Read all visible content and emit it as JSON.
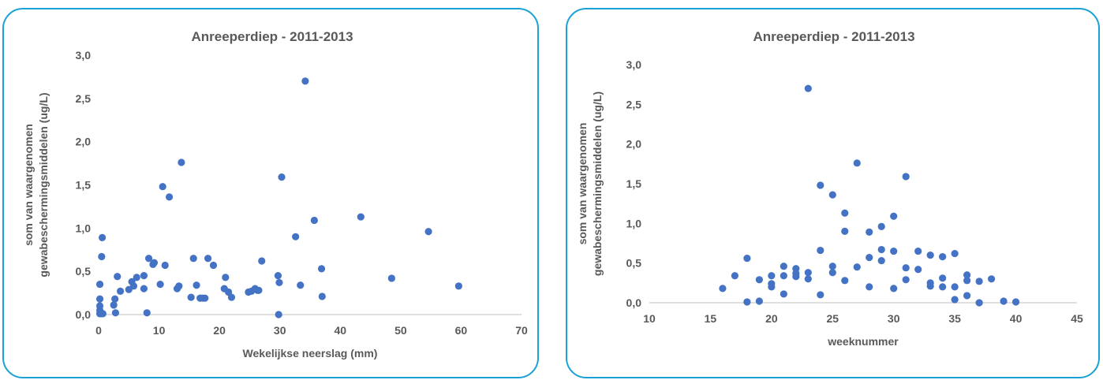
{
  "chart_data": [
    {
      "type": "scatter",
      "title": "Anreeperdiep - 2011-2013",
      "xlabel": "Wekelijkse neerslag (mm)",
      "ylabel_lines": [
        "som van waargenomen",
        "gewabeschermingsmiddelen (ug/L)"
      ],
      "xlim": [
        0,
        70
      ],
      "ylim": [
        0,
        3
      ],
      "xticks": [
        "0",
        "10",
        "20",
        "30",
        "40",
        "50",
        "60",
        "70"
      ],
      "yticks": [
        "0,0",
        "0,5",
        "1,0",
        "1,5",
        "2,0",
        "2,5",
        "3,0"
      ],
      "grid": false,
      "marker_color": "#4472c4",
      "x": [
        0.2,
        0.2,
        0.2,
        0.2,
        0.2,
        0.4,
        0.5,
        0.6,
        0.7,
        2.5,
        2.7,
        2.8,
        3.1,
        3.6,
        5.0,
        5.5,
        5.8,
        6.3,
        7.5,
        7.5,
        8.0,
        8.3,
        9.0,
        9.2,
        10.2,
        10.6,
        11.0,
        11.7,
        13.0,
        13.3,
        13.7,
        15.3,
        15.7,
        16.2,
        16.8,
        17.2,
        17.6,
        18.1,
        19.0,
        20.8,
        21.0,
        21.5,
        22.0,
        24.8,
        25.3,
        25.9,
        26.3,
        26.5,
        27.0,
        29.7,
        29.8,
        29.9,
        30.3,
        32.6,
        33.4,
        34.2,
        35.7,
        36.9,
        37.0,
        43.4,
        48.5,
        54.6,
        59.6
      ],
      "y": [
        0.01,
        0.05,
        0.1,
        0.18,
        0.35,
        0.01,
        0.67,
        0.89,
        0.01,
        0.11,
        0.18,
        0.02,
        0.44,
        0.27,
        0.29,
        0.38,
        0.33,
        0.43,
        0.3,
        0.45,
        0.02,
        0.65,
        0.58,
        0.6,
        0.35,
        1.48,
        0.57,
        1.36,
        0.3,
        0.33,
        1.76,
        0.2,
        0.65,
        0.34,
        0.19,
        0.19,
        0.19,
        0.65,
        0.57,
        0.3,
        0.43,
        0.26,
        0.2,
        0.26,
        0.27,
        0.3,
        0.28,
        0.28,
        0.62,
        0.45,
        0.0,
        0.37,
        1.59,
        0.9,
        0.34,
        2.7,
        1.09,
        0.53,
        0.21,
        1.13,
        0.42,
        0.96,
        0.33
      ]
    },
    {
      "type": "scatter",
      "title": "Anreeperdiep - 2011-2013",
      "xlabel": "weeknummer",
      "ylabel_lines": [
        "som van waargenomen",
        "gewabeschermingsmiddelen (ug/L)"
      ],
      "xlim": [
        10,
        45
      ],
      "ylim": [
        0,
        3
      ],
      "xticks": [
        "10",
        "15",
        "20",
        "25",
        "30",
        "35",
        "40",
        "45"
      ],
      "yticks": [
        "0,0",
        "0,5",
        "1,0",
        "1,5",
        "2,0",
        "2,5",
        "3,0"
      ],
      "grid": false,
      "marker_color": "#4472c4",
      "x": [
        16,
        17,
        18,
        18,
        19,
        19,
        20,
        20,
        20,
        21,
        21,
        21,
        22,
        22,
        22,
        23,
        23,
        23,
        24,
        24,
        24,
        25,
        25,
        25,
        26,
        26,
        26,
        27,
        27,
        28,
        28,
        28,
        29,
        29,
        29,
        30,
        30,
        30,
        31,
        31,
        31,
        32,
        32,
        33,
        33,
        33,
        34,
        34,
        34,
        35,
        35,
        35,
        36,
        36,
        36,
        37,
        37,
        38,
        39,
        40
      ],
      "y": [
        0.18,
        0.34,
        0.56,
        0.01,
        0.29,
        0.02,
        0.34,
        0.24,
        0.2,
        0.46,
        0.34,
        0.11,
        0.43,
        0.37,
        0.33,
        2.7,
        0.38,
        0.3,
        1.48,
        0.66,
        0.1,
        1.36,
        0.46,
        0.38,
        1.13,
        0.9,
        0.28,
        1.76,
        0.45,
        0.89,
        0.57,
        0.2,
        0.96,
        0.67,
        0.53,
        1.09,
        0.65,
        0.18,
        1.59,
        0.44,
        0.29,
        0.65,
        0.42,
        0.6,
        0.25,
        0.21,
        0.58,
        0.31,
        0.2,
        0.62,
        0.2,
        0.04,
        0.35,
        0.28,
        0.09,
        0.27,
        0.0,
        0.3,
        0.02,
        0.01
      ]
    }
  ]
}
